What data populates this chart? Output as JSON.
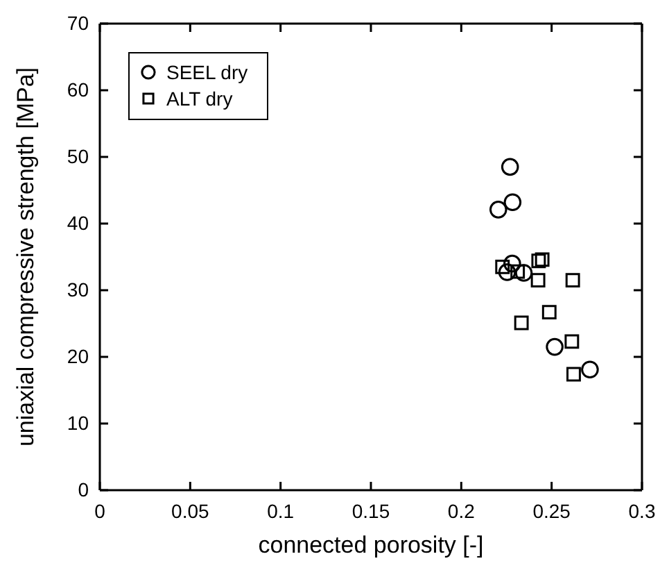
{
  "chart_data": {
    "type": "scatter",
    "xlabel": "connected porosity [-]",
    "ylabel": "uniaxial compressive strength [MPa]",
    "xlim": [
      0,
      0.3
    ],
    "ylim": [
      0,
      70
    ],
    "xticks": [
      0,
      0.05,
      0.1,
      0.15,
      0.2,
      0.25,
      0.3
    ],
    "yticks": [
      0,
      10,
      20,
      30,
      40,
      50,
      60,
      70
    ],
    "grid": false,
    "legend": "top left",
    "series": [
      {
        "name": "SEEL dry",
        "color": "#000000",
        "marker": "circle",
        "x": [
          0.227,
          0.2205,
          0.2284,
          0.2282,
          0.2254,
          0.2346,
          0.2517,
          0.2712
        ],
        "values": [
          48.5,
          42.1,
          43.2,
          34.0,
          32.7,
          32.6,
          21.5,
          18.1
        ]
      },
      {
        "name": "ALT dry",
        "color": "#000000",
        "marker": "square",
        "x": [
          0.2228,
          0.2312,
          0.2428,
          0.2448,
          0.2425,
          0.2617,
          0.2487,
          0.2333,
          0.2612,
          0.2622
        ],
        "values": [
          33.5,
          32.8,
          34.4,
          34.6,
          31.5,
          31.5,
          26.7,
          25.1,
          22.3,
          17.4
        ]
      }
    ]
  }
}
